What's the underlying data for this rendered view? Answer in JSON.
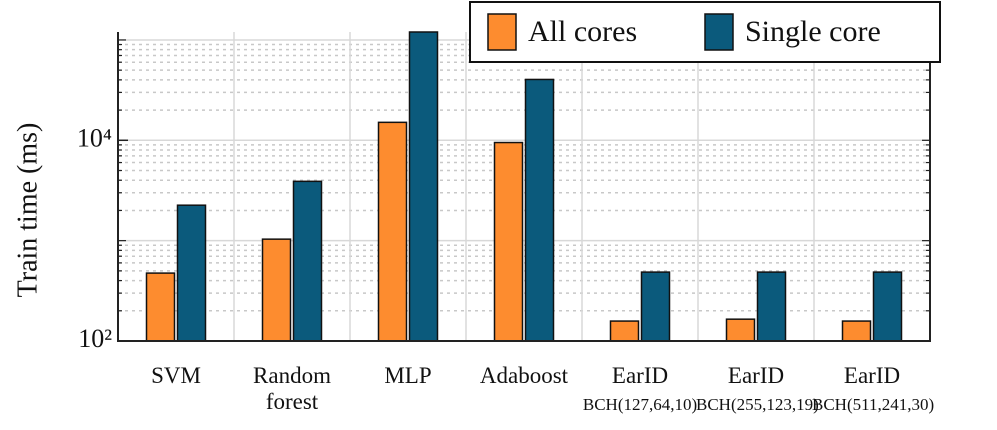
{
  "chart_data": {
    "type": "bar",
    "y_label": "Train time (ms)",
    "categories": [
      "SVM",
      "Random forest",
      "MLP",
      "Adaboost",
      "EarID",
      "EarID",
      "EarID"
    ],
    "sublabels": [
      null,
      null,
      null,
      null,
      "BCH(127,64,10)",
      "BCH(255,123,19)",
      "BCH(511,241,30)"
    ],
    "series": [
      {
        "name": "All cores",
        "color": "#fd8c2f",
        "values": [
          475,
          1035,
          15100,
          9500,
          158,
          165,
          158
        ]
      },
      {
        "name": "Single core",
        "color": "#0b5a7c",
        "values": [
          2256,
          3900,
          120000,
          40400,
          486,
          486,
          486
        ]
      }
    ],
    "ylim": [
      100,
      120000
    ],
    "log_scale": true,
    "yticks": [
      {
        "value": 100,
        "label": "10²"
      },
      {
        "value": 10000,
        "label": "10⁴"
      }
    ],
    "grid": true,
    "legend": "top-right"
  }
}
